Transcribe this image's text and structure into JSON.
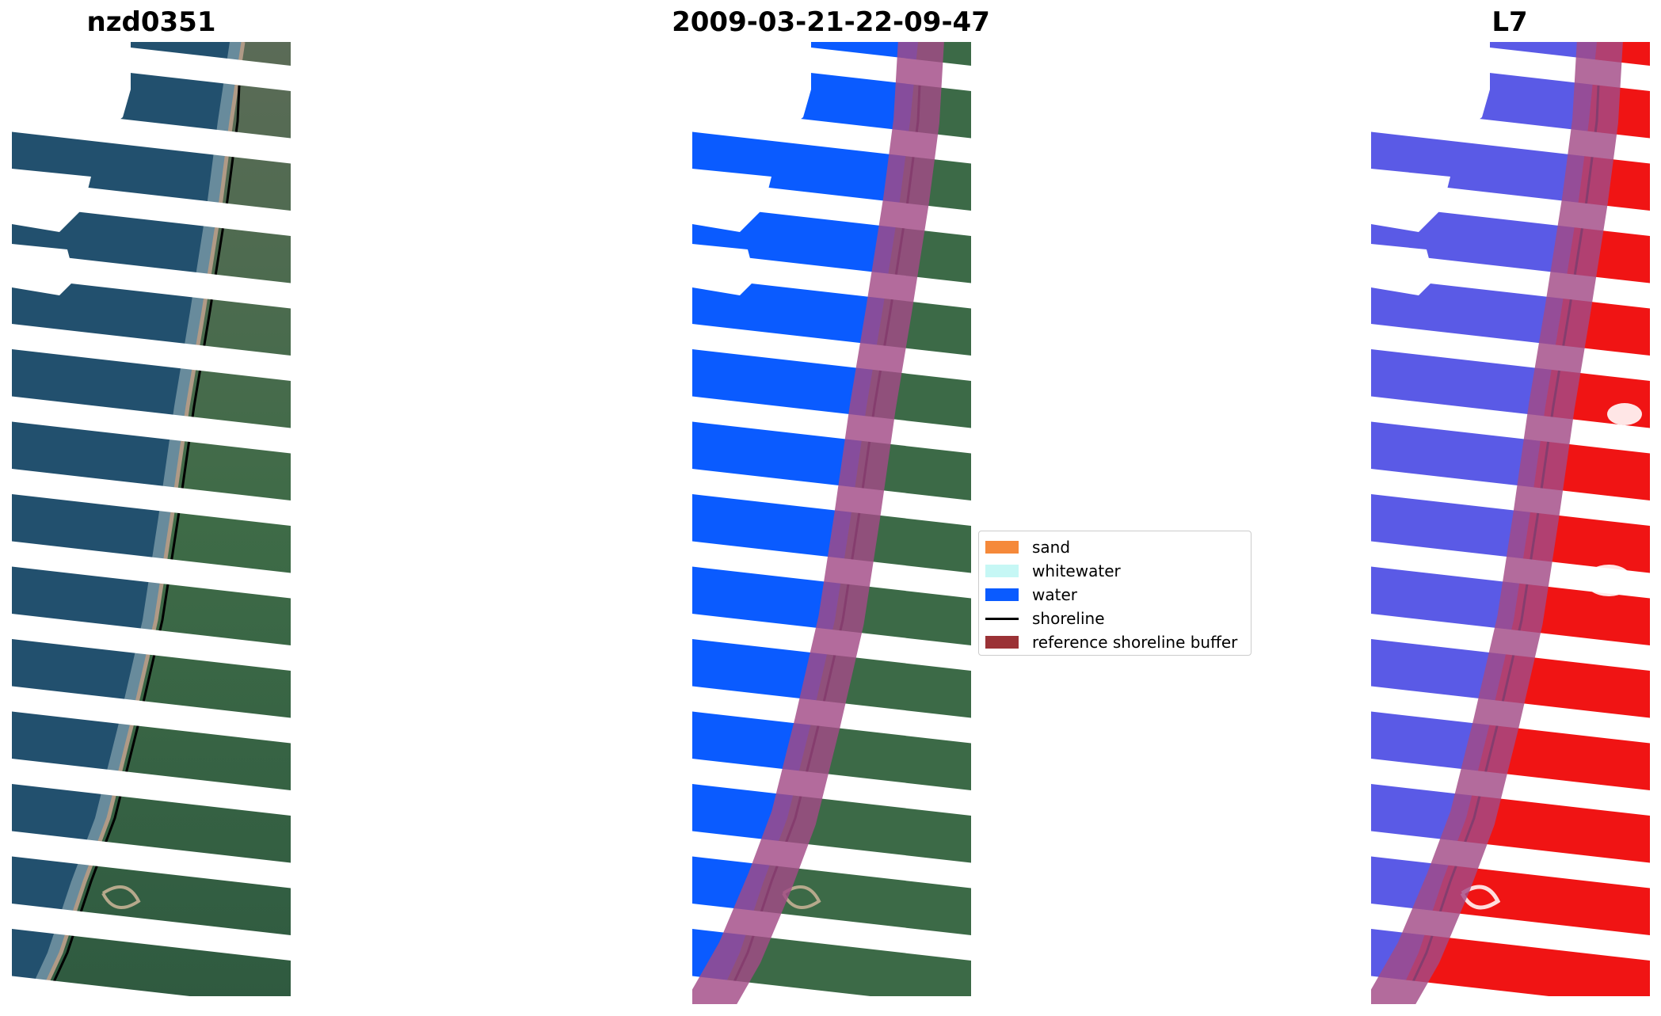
{
  "titles": {
    "left": "nzd0351",
    "middle": "2009-03-21-22-09-47",
    "right": "L7"
  },
  "panels": [
    {
      "name": "rgb-image",
      "content": "satellite RGB image with Landsat 7 scan-line gaps"
    },
    {
      "name": "classified-image",
      "content": "classified image with water, sand and whitewater overlay"
    },
    {
      "name": "mndwi-image",
      "content": "water index image, blue water and red land"
    }
  ],
  "legend": {
    "items": [
      {
        "label": "sand",
        "color": "#f5893a",
        "kind": "patch"
      },
      {
        "label": "whitewater",
        "color": "#c6f7f5",
        "kind": "patch"
      },
      {
        "label": "water",
        "color": "#0a5bff",
        "kind": "patch"
      },
      {
        "label": "shoreline",
        "color": "#000000",
        "kind": "line"
      },
      {
        "label": "reference shoreline buffer",
        "color": "#9b3236",
        "kind": "patch"
      }
    ]
  },
  "colors": {
    "ocean": "#1e4d6b",
    "land": "#3e6b47",
    "water_class": "#0a5bff",
    "index_water": "#5a5ae6",
    "index_land": "#f01414",
    "buffer": "#a24a86"
  }
}
